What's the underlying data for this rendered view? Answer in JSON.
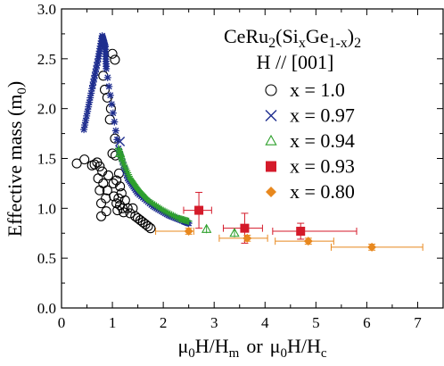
{
  "chart_data": {
    "type": "scatter",
    "xlabel_parts": {
      "mu1": "μ",
      "sub1": "0",
      "h1": "H/H",
      "sub2": "m",
      "or": "or",
      "mu2": "μ",
      "sub3": "0",
      "h2": "H/H",
      "sub4": "c"
    },
    "ylabel_parts": {
      "main": "Effective mass (m",
      "sub": "0",
      "close": ")"
    },
    "legend_title": {
      "line1": {
        "a": "CeRu",
        "b": "2",
        "c": "(Si",
        "d": "x",
        "e": "Ge",
        "f": "1-x",
        "g": ")",
        "h": "2"
      },
      "line2": "H // [001]"
    },
    "xlim": [
      0,
      7.5
    ],
    "ylim": [
      0,
      3.0
    ],
    "xticks": [
      "0",
      "1",
      "2",
      "3",
      "4",
      "5",
      "6",
      "7"
    ],
    "yticks": [
      "0.0",
      "0.5",
      "1.0",
      "1.5",
      "2.0",
      "2.5",
      "3.0"
    ],
    "colors": {
      "x100": "#000000",
      "x097": "#1f2e8f",
      "x094": "#2ea02c",
      "x093": "#d41a2a",
      "x080": "#e8881e"
    },
    "series": [
      {
        "name": "x = 1.0",
        "key": "x100",
        "marker": "open-circle",
        "points": [
          [
            0.3,
            1.45
          ],
          [
            0.45,
            1.49
          ],
          [
            0.6,
            1.43
          ],
          [
            0.65,
            1.44
          ],
          [
            0.7,
            1.46
          ],
          [
            0.72,
            1.3
          ],
          [
            0.75,
            1.42
          ],
          [
            0.75,
            1.18
          ],
          [
            0.78,
            1.05
          ],
          [
            0.78,
            0.92
          ],
          [
            0.8,
            1.37
          ],
          [
            0.82,
            1.25
          ],
          [
            0.82,
            2.33
          ],
          [
            0.85,
            2.19
          ],
          [
            0.87,
            1.1
          ],
          [
            0.88,
            0.97
          ],
          [
            0.9,
            2.11
          ],
          [
            0.9,
            1.18
          ],
          [
            0.92,
            1.33
          ],
          [
            0.95,
            1.89
          ],
          [
            0.97,
            2.0
          ],
          [
            1.0,
            2.55
          ],
          [
            1.0,
            1.55
          ],
          [
            1.02,
            1.25
          ],
          [
            1.03,
            1.12
          ],
          [
            1.05,
            2.49
          ],
          [
            1.05,
            1.7
          ],
          [
            1.06,
            1.53
          ],
          [
            1.08,
            1.28
          ],
          [
            1.08,
            1.05
          ],
          [
            1.1,
            0.98
          ],
          [
            1.12,
            1.1
          ],
          [
            1.13,
            1.35
          ],
          [
            1.15,
            1.22
          ],
          [
            1.15,
            1.03
          ],
          [
            1.18,
            1.15
          ],
          [
            1.2,
            1.0
          ],
          [
            1.22,
            0.96
          ],
          [
            1.25,
            1.08
          ],
          [
            1.3,
            1.0
          ],
          [
            1.35,
            0.95
          ],
          [
            1.4,
            1.0
          ],
          [
            1.45,
            0.92
          ],
          [
            1.5,
            0.9
          ],
          [
            1.55,
            0.88
          ],
          [
            1.6,
            0.86
          ],
          [
            1.65,
            0.84
          ],
          [
            1.7,
            0.82
          ],
          [
            1.75,
            0.8
          ]
        ]
      },
      {
        "name": "x = 0.97",
        "key": "x097",
        "marker": "cross",
        "band": [
          [
            0.44,
            1.79
          ],
          [
            0.6,
            2.2
          ],
          [
            0.72,
            2.5
          ],
          [
            0.8,
            2.73
          ],
          [
            0.86,
            2.62
          ],
          [
            0.88,
            2.4
          ],
          [
            1.12,
            1.6
          ],
          [
            1.3,
            1.3
          ],
          [
            1.5,
            1.15
          ],
          [
            1.8,
            1.02
          ],
          [
            2.1,
            0.93
          ],
          [
            2.4,
            0.87
          ],
          [
            2.5,
            0.85
          ]
        ],
        "isolated": [
          [
            1.15,
            1.67
          ]
        ]
      },
      {
        "name": "x = 0.94",
        "key": "x094",
        "marker": "open-triangle",
        "band": [
          [
            1.12,
            1.58
          ],
          [
            1.2,
            1.45
          ],
          [
            1.35,
            1.28
          ],
          [
            1.5,
            1.17
          ],
          [
            1.7,
            1.06
          ],
          [
            2.0,
            0.96
          ],
          [
            2.3,
            0.88
          ],
          [
            2.5,
            0.85
          ]
        ],
        "isolated": [
          [
            1.15,
            1.55
          ],
          [
            2.85,
            0.79
          ],
          [
            3.4,
            0.75
          ]
        ]
      },
      {
        "name": "x = 0.93",
        "key": "x093",
        "marker": "filled-square",
        "points": [
          {
            "x": 2.7,
            "y": 0.98,
            "xerr": [
              0.3,
              0.25
            ],
            "yerr": 0.18
          },
          {
            "x": 3.6,
            "y": 0.8,
            "xerr": [
              0.42,
              0.35
            ],
            "yerr": 0.15
          },
          {
            "x": 4.7,
            "y": 0.77,
            "xerr": [
              0.55,
              1.1
            ],
            "yerr": 0.08
          }
        ]
      },
      {
        "name": "x = 0.80",
        "key": "x080",
        "marker": "filled-diamond",
        "points": [
          {
            "x": 2.5,
            "y": 0.77,
            "xerr": [
              0.65,
              0.1
            ],
            "yerr": 0.03
          },
          {
            "x": 3.65,
            "y": 0.7,
            "xerr": [
              0.55,
              0.4
            ],
            "yerr": 0.03
          },
          {
            "x": 4.85,
            "y": 0.67,
            "xerr": [
              0.65,
              0.5
            ],
            "yerr": 0.03
          },
          {
            "x": 6.1,
            "y": 0.61,
            "xerr": [
              0.8,
              1.0
            ],
            "yerr": 0.03
          }
        ]
      }
    ]
  }
}
